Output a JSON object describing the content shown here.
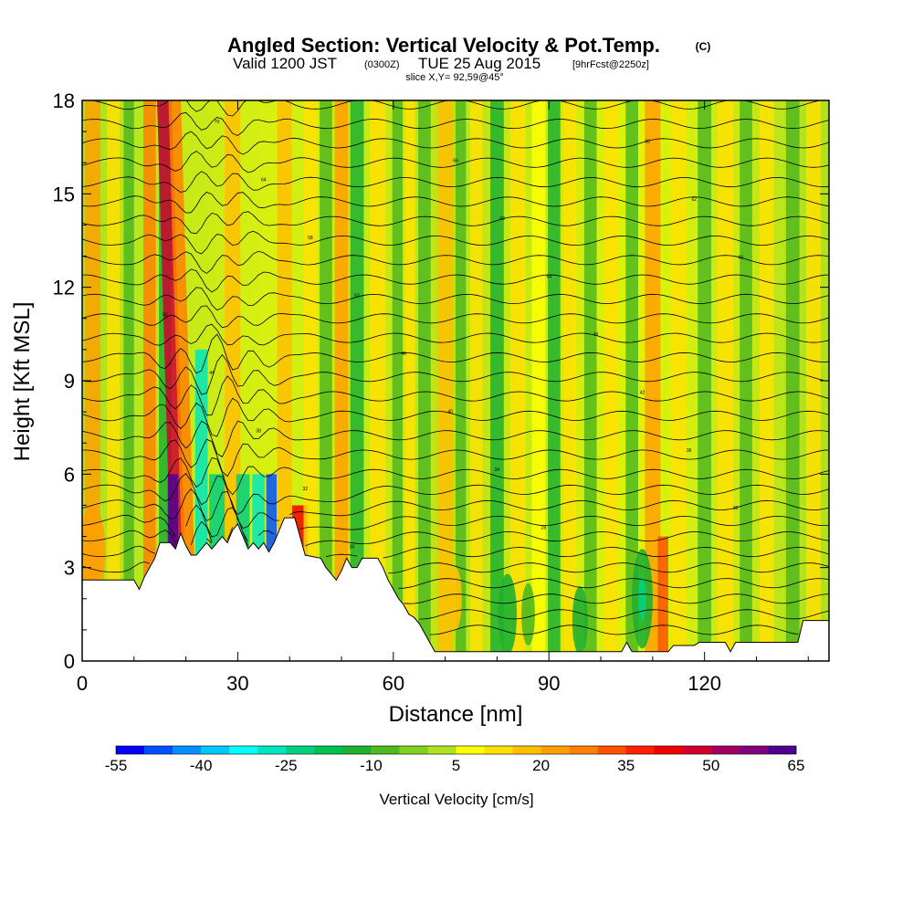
{
  "title": {
    "main": "Angled Section: Vertical Velocity & Pot.Temp.",
    "main_suffix": "(C)",
    "valid_prefix": "Valid 1200 JST",
    "valid_utc": "(0300Z)",
    "valid_date": "TUE 25 Aug 2015",
    "forecast_tag": "[9hrFcst@2250z]",
    "slice": "slice X,Y= 92,59@45°"
  },
  "chart_data": {
    "type": "heatmap",
    "xlabel": "Distance [nm]",
    "ylabel": "Height [Kft MSL]",
    "xlim": [
      0,
      144
    ],
    "ylim": [
      0,
      18
    ],
    "x_ticks": [
      0,
      30,
      60,
      90,
      120
    ],
    "y_ticks": [
      0,
      3,
      6,
      9,
      12,
      15,
      18
    ],
    "colorbar": {
      "title": "Vertical Velocity [cm/s]",
      "tick_labels": [
        "-55",
        "-40",
        "-25",
        "-10",
        "5",
        "20",
        "35",
        "50",
        "65"
      ],
      "bins": [
        -55,
        -50,
        -45,
        -40,
        -35,
        -30,
        -25,
        -20,
        -15,
        -10,
        -5,
        0,
        5,
        10,
        15,
        20,
        25,
        30,
        35,
        40,
        45,
        50,
        55,
        60,
        65
      ],
      "colors": [
        "#0000ff",
        "#0050ff",
        "#0090ff",
        "#00c8ff",
        "#00ffff",
        "#00e6c0",
        "#00d080",
        "#00c050",
        "#20b030",
        "#50b820",
        "#80d020",
        "#b0e020",
        "#ffff00",
        "#ffe000",
        "#ffc000",
        "#ffa000",
        "#ff8000",
        "#ff5000",
        "#ff2000",
        "#f00000",
        "#d00030",
        "#a00060",
        "#800080",
        "#500090"
      ]
    },
    "terrain_kft": [
      [
        0,
        2.6
      ],
      [
        6,
        2.6
      ],
      [
        10,
        2.6
      ],
      [
        11,
        2.3
      ],
      [
        12,
        2.7
      ],
      [
        13,
        3.0
      ],
      [
        14,
        3.3
      ],
      [
        15,
        3.8
      ],
      [
        17,
        3.8
      ],
      [
        18,
        3.6
      ],
      [
        19,
        4.1
      ],
      [
        20,
        3.7
      ],
      [
        21,
        3.4
      ],
      [
        22,
        3.4
      ],
      [
        23,
        3.6
      ],
      [
        24,
        3.8
      ],
      [
        25,
        3.6
      ],
      [
        26,
        3.8
      ],
      [
        27,
        4.0
      ],
      [
        28,
        3.8
      ],
      [
        29,
        4.2
      ],
      [
        30,
        4.4
      ],
      [
        31,
        4.0
      ],
      [
        32,
        3.6
      ],
      [
        33,
        3.8
      ],
      [
        34,
        3.6
      ],
      [
        35,
        3.8
      ],
      [
        36,
        3.5
      ],
      [
        37,
        3.8
      ],
      [
        38,
        4.2
      ],
      [
        39,
        4.6
      ],
      [
        41,
        4.6
      ],
      [
        42,
        4.0
      ],
      [
        43,
        3.4
      ],
      [
        46,
        3.3
      ],
      [
        47,
        3.0
      ],
      [
        48,
        2.8
      ],
      [
        49,
        2.6
      ],
      [
        50,
        2.9
      ],
      [
        51,
        3.3
      ],
      [
        52,
        3.0
      ],
      [
        53,
        3.0
      ],
      [
        54,
        3.3
      ],
      [
        57,
        3.3
      ],
      [
        58,
        3.0
      ],
      [
        59,
        2.6
      ],
      [
        60,
        2.3
      ],
      [
        61,
        2.0
      ],
      [
        62,
        1.8
      ],
      [
        63,
        1.5
      ],
      [
        64,
        1.4
      ],
      [
        65,
        1.2
      ],
      [
        66,
        0.9
      ],
      [
        67,
        0.6
      ],
      [
        68,
        0.3
      ],
      [
        70,
        0.3
      ],
      [
        72,
        0.3
      ],
      [
        90,
        0.3
      ],
      [
        100,
        0.3
      ],
      [
        104,
        0.3
      ],
      [
        105,
        0.6
      ],
      [
        106,
        0.3
      ],
      [
        113,
        0.3
      ],
      [
        114,
        0.5
      ],
      [
        118,
        0.5
      ],
      [
        119,
        0.6
      ],
      [
        124,
        0.6
      ],
      [
        125,
        0.3
      ],
      [
        126,
        0.6
      ],
      [
        132,
        0.6
      ],
      [
        138,
        0.6
      ],
      [
        139,
        1.3
      ],
      [
        144,
        1.3
      ]
    ],
    "updraft_bands": [
      {
        "x": 2,
        "w": 1.5,
        "top": 18,
        "v": 20
      },
      {
        "x": 6,
        "w": 1.2,
        "top": 18,
        "v": 12
      },
      {
        "x": 9,
        "w": 1.0,
        "top": 18,
        "v": -8
      },
      {
        "x": 13,
        "w": 1.2,
        "top": 18,
        "v": 25
      },
      {
        "x": 16,
        "w": 1.2,
        "top": 18,
        "v": -12
      },
      {
        "x": 19,
        "w": 1.4,
        "top": 18,
        "v": 48
      },
      {
        "x": 17.5,
        "w": 1.0,
        "top": 6,
        "v": 62
      },
      {
        "x": 21,
        "w": 1.2,
        "top": 18,
        "v": 28
      },
      {
        "x": 23,
        "w": 1.2,
        "top": 10,
        "v": -28
      },
      {
        "x": 26,
        "w": 1.5,
        "top": 6,
        "v": -25
      },
      {
        "x": 29,
        "w": 1.5,
        "top": 18,
        "v": 15
      },
      {
        "x": 31,
        "w": 1.3,
        "top": 6,
        "v": -22
      },
      {
        "x": 34,
        "w": 1.2,
        "top": 6,
        "v": -30
      },
      {
        "x": 36.5,
        "w": 1.0,
        "top": 6,
        "v": -48
      },
      {
        "x": 39,
        "w": 1.4,
        "top": 18,
        "v": 18
      },
      {
        "x": 42,
        "w": 1.5,
        "top": 5,
        "v": 42
      },
      {
        "x": 44,
        "w": 1.3,
        "top": 18,
        "v": 12
      },
      {
        "x": 47,
        "w": 1.2,
        "top": 18,
        "v": -10
      },
      {
        "x": 50,
        "w": 1.3,
        "top": 18,
        "v": 22
      },
      {
        "x": 53,
        "w": 1.3,
        "top": 18,
        "v": -12
      },
      {
        "x": 57,
        "w": 1.5,
        "top": 18,
        "v": 14
      },
      {
        "x": 61,
        "w": 1.2,
        "top": 18,
        "v": -8
      },
      {
        "x": 63,
        "w": 1.2,
        "top": 18,
        "v": 10
      },
      {
        "x": 66,
        "w": 1.2,
        "top": 18,
        "v": -10
      },
      {
        "x": 70,
        "w": 1.5,
        "top": 18,
        "v": 16
      },
      {
        "x": 73,
        "w": 1.0,
        "top": 18,
        "v": -10
      },
      {
        "x": 76,
        "w": 1.2,
        "top": 18,
        "v": 12
      },
      {
        "x": 80,
        "w": 1.3,
        "top": 18,
        "v": -12
      },
      {
        "x": 84,
        "w": 1.5,
        "top": 18,
        "v": 14
      },
      {
        "x": 88,
        "w": 1.3,
        "top": 18,
        "v": 8
      },
      {
        "x": 91,
        "w": 1.2,
        "top": 18,
        "v": -15
      },
      {
        "x": 94,
        "w": 1.3,
        "top": 18,
        "v": 12
      },
      {
        "x": 98,
        "w": 1.2,
        "top": 18,
        "v": -10
      },
      {
        "x": 102,
        "w": 1.3,
        "top": 18,
        "v": 14
      },
      {
        "x": 106,
        "w": 1.2,
        "top": 18,
        "v": -10
      },
      {
        "x": 110,
        "w": 1.5,
        "top": 18,
        "v": 20
      },
      {
        "x": 112,
        "w": 1.0,
        "top": 4,
        "v": 32
      },
      {
        "x": 115,
        "w": 1.5,
        "top": 18,
        "v": 10
      },
      {
        "x": 120,
        "w": 1.3,
        "top": 18,
        "v": -8
      },
      {
        "x": 124,
        "w": 1.5,
        "top": 18,
        "v": 14
      },
      {
        "x": 128,
        "w": 1.2,
        "top": 18,
        "v": -10
      },
      {
        "x": 132,
        "w": 1.4,
        "top": 18,
        "v": 12
      },
      {
        "x": 137,
        "w": 1.3,
        "top": 18,
        "v": -8
      },
      {
        "x": 141,
        "w": 1.4,
        "top": 18,
        "v": 10
      }
    ],
    "low_level_cells": [
      {
        "x": 82,
        "y": 1.5,
        "rx": 1.8,
        "ry": 1.3,
        "v": -12
      },
      {
        "x": 86,
        "y": 1.5,
        "rx": 1.3,
        "ry": 1.0,
        "v": -10
      },
      {
        "x": 96,
        "y": 1.3,
        "rx": 1.5,
        "ry": 1.1,
        "v": -11
      },
      {
        "x": 108,
        "y": 2.0,
        "rx": 2.0,
        "ry": 1.6,
        "v": -14
      },
      {
        "x": 108,
        "y": 2.0,
        "rx": 0.7,
        "ry": 0.7,
        "v": -22
      },
      {
        "x": 72,
        "y": 2.0,
        "rx": 1.2,
        "ry": 1.0,
        "v": 18
      },
      {
        "x": 2,
        "y": 3.5,
        "rx": 2.5,
        "ry": 1.5,
        "v": 22
      }
    ],
    "theta_levels": {
      "count": 34,
      "base_kft": 1.0,
      "spacing_kft": 0.5,
      "stable_layer_kft": 6.0
    },
    "contour_labels": [
      "24",
      "26",
      "28",
      "30",
      "32",
      "34",
      "36",
      "38",
      "40",
      "42",
      "44",
      "46",
      "48",
      "50",
      "52",
      "54",
      "56",
      "58",
      "60",
      "62",
      "64",
      "66",
      "68",
      "70"
    ]
  }
}
